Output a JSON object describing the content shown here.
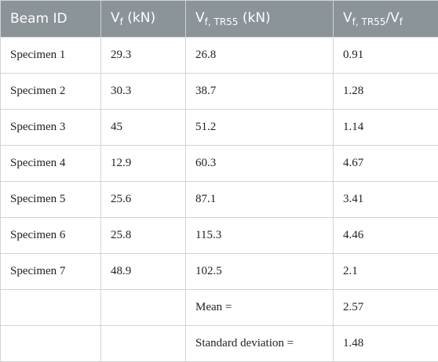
{
  "table": {
    "header": [
      [
        {
          "text": "Beam ID"
        }
      ],
      [
        {
          "text": "V"
        },
        {
          "sub": "f"
        },
        {
          "text": " (kN)"
        }
      ],
      [
        {
          "text": "V"
        },
        {
          "sub": "f, TR55"
        },
        {
          "text": " (kN)"
        }
      ],
      [
        {
          "text": "V"
        },
        {
          "sub": "f, TR55"
        },
        {
          "text": "/V"
        },
        {
          "sub": "f"
        }
      ]
    ],
    "rows": [
      [
        "Specimen 1",
        "29.3",
        "26.8",
        "0.91"
      ],
      [
        "Specimen 2",
        "30.3",
        "38.7",
        "1.28"
      ],
      [
        "Specimen 3",
        "45",
        "51.2",
        "1.14"
      ],
      [
        "Specimen 4",
        "12.9",
        "60.3",
        "4.67"
      ],
      [
        "Specimen 5",
        "25.6",
        "87.1",
        "3.41"
      ],
      [
        "Specimen 6",
        "25.8",
        "115.3",
        "4.46"
      ],
      [
        "Specimen 7",
        "48.9",
        "102.5",
        "2.1"
      ],
      [
        null,
        null,
        "Mean =",
        "2.57"
      ],
      [
        null,
        null,
        "Standard deviation =",
        "1.48"
      ]
    ]
  }
}
